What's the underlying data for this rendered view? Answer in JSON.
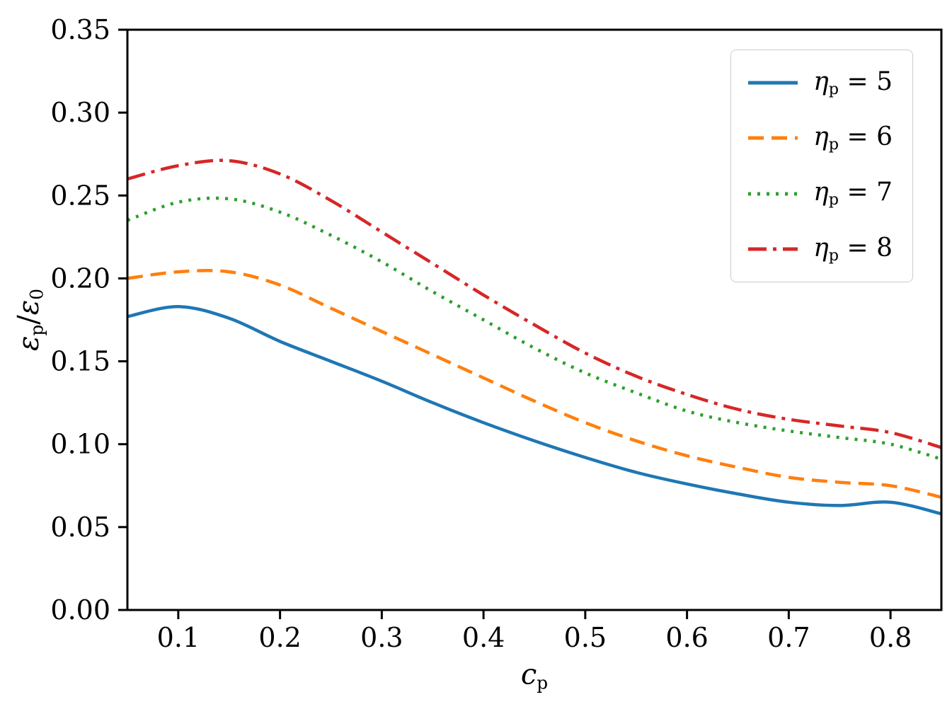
{
  "figure": {
    "background": "#ffffff",
    "spine_color": "#000000"
  },
  "chart_data": {
    "type": "line",
    "title": "",
    "xlabel": "c_p",
    "ylabel": "ε_p/ε_0",
    "xlim": [
      0.05,
      0.85
    ],
    "ylim": [
      0.0,
      0.35
    ],
    "xticks": [
      0.1,
      0.2,
      0.3,
      0.4,
      0.5,
      0.6,
      0.7,
      0.8
    ],
    "yticks": [
      0.0,
      0.05,
      0.1,
      0.15,
      0.2,
      0.25,
      0.3,
      0.35
    ],
    "grid": false,
    "legend_position": "upper right",
    "x": [
      0.05,
      0.1,
      0.15,
      0.2,
      0.25,
      0.3,
      0.35,
      0.4,
      0.45,
      0.5,
      0.55,
      0.6,
      0.65,
      0.7,
      0.75,
      0.8,
      0.85
    ],
    "series": [
      {
        "name": "η_p = 5",
        "color": "#1f77b4",
        "style": "solid",
        "values": [
          0.177,
          0.183,
          0.176,
          0.162,
          0.15,
          0.138,
          0.125,
          0.113,
          0.102,
          0.092,
          0.083,
          0.076,
          0.07,
          0.065,
          0.063,
          0.065,
          0.058
        ]
      },
      {
        "name": "η_p = 6",
        "color": "#ff7f0e",
        "style": "dashed",
        "values": [
          0.2,
          0.204,
          0.204,
          0.196,
          0.182,
          0.168,
          0.154,
          0.14,
          0.126,
          0.113,
          0.102,
          0.093,
          0.086,
          0.08,
          0.077,
          0.075,
          0.068
        ]
      },
      {
        "name": "η_p = 7",
        "color": "#2ca02c",
        "style": "dotted",
        "values": [
          0.235,
          0.246,
          0.248,
          0.24,
          0.226,
          0.21,
          0.192,
          0.175,
          0.158,
          0.143,
          0.131,
          0.12,
          0.113,
          0.108,
          0.104,
          0.1,
          0.091
        ]
      },
      {
        "name": "η_p = 8",
        "color": "#d62728",
        "style": "dashdot",
        "values": [
          0.26,
          0.268,
          0.271,
          0.263,
          0.247,
          0.228,
          0.209,
          0.19,
          0.172,
          0.155,
          0.141,
          0.13,
          0.121,
          0.115,
          0.111,
          0.107,
          0.098
        ]
      }
    ]
  }
}
